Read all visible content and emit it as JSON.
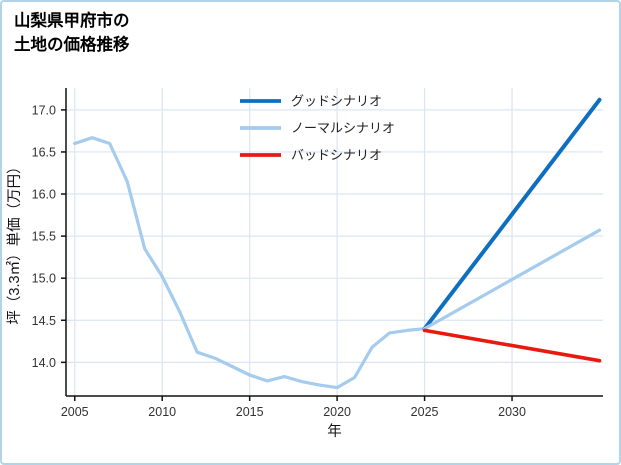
{
  "title": {
    "line1": "山梨県甲府市の",
    "line2": "土地の価格推移"
  },
  "chart_data": {
    "type": "line",
    "title": "山梨県甲府市の土地の価格推移",
    "xlabel": "年",
    "ylabel": "坪（3.3㎡）単価（万円）",
    "xlim": [
      2004.5,
      2035.2
    ],
    "ylim": [
      13.6,
      17.26
    ],
    "xticks": [
      2005,
      2010,
      2015,
      2020,
      2025,
      2030
    ],
    "yticks": [
      14.0,
      14.5,
      15.0,
      15.5,
      16.0,
      16.5,
      17.0
    ],
    "grid": true,
    "legend_position": "upper-center-inside",
    "colors": {
      "grid": "#dbe5f1",
      "axis": "#111111",
      "tick_text": "#333333",
      "border": "#b3d3ea",
      "good": "#0e6fc1",
      "normal": "#a5cbee",
      "bad": "#e8190f"
    },
    "legend": [
      {
        "id": "good",
        "label": "グッドシナリオ",
        "color": "#0e6fc1"
      },
      {
        "id": "normal",
        "label": "ノーマルシナリオ",
        "color": "#a5cbee"
      },
      {
        "id": "bad",
        "label": "バッドシナリオ",
        "color": "#e8190f"
      }
    ],
    "series": [
      {
        "id": "history",
        "color": "#a5cbee",
        "x": [
          2005,
          2006,
          2007,
          2008,
          2009,
          2010,
          2011,
          2012,
          2013,
          2014,
          2015,
          2016,
          2017,
          2018,
          2019,
          2020,
          2021,
          2022,
          2023,
          2024,
          2025
        ],
        "y": [
          16.6,
          16.67,
          16.6,
          16.15,
          15.35,
          15.02,
          14.6,
          14.12,
          14.05,
          13.95,
          13.85,
          13.78,
          13.83,
          13.77,
          13.73,
          13.7,
          13.82,
          14.18,
          14.35,
          14.38,
          14.4
        ]
      },
      {
        "id": "good",
        "color": "#0e6fc1",
        "x": [
          2025,
          2035
        ],
        "y": [
          14.4,
          17.12
        ]
      },
      {
        "id": "normal",
        "color": "#a5cbee",
        "x": [
          2025,
          2035
        ],
        "y": [
          14.4,
          15.57
        ]
      },
      {
        "id": "bad",
        "color": "#e8190f",
        "x": [
          2025,
          2035
        ],
        "y": [
          14.38,
          14.02
        ]
      }
    ]
  }
}
